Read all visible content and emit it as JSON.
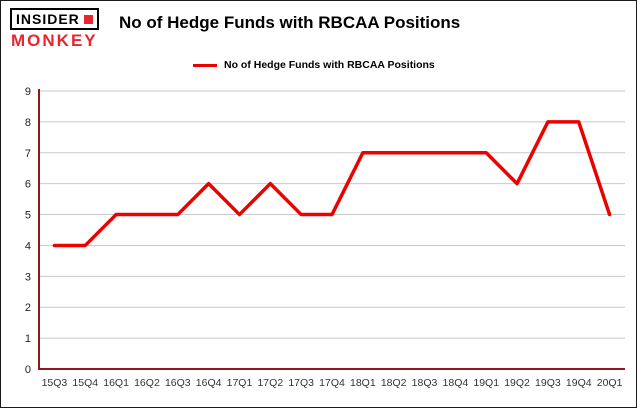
{
  "logo": {
    "line1": "INSIDER",
    "line2": "MONKEY"
  },
  "title": "No of Hedge Funds with RBCAA Positions",
  "legend": {
    "label": "No of Hedge Funds with RBCAA Positions",
    "color": "#ee0000"
  },
  "chart_data": {
    "type": "line",
    "title": "No of Hedge Funds with RBCAA Positions",
    "series_name": "No of Hedge Funds with RBCAA Positions",
    "categories": [
      "15Q3",
      "15Q4",
      "16Q1",
      "16Q2",
      "16Q3",
      "16Q4",
      "17Q1",
      "17Q2",
      "17Q3",
      "17Q4",
      "18Q1",
      "18Q2",
      "18Q3",
      "18Q4",
      "19Q1",
      "19Q2",
      "19Q3",
      "19Q4",
      "20Q1"
    ],
    "values": [
      4,
      4,
      5,
      5,
      5,
      6,
      5,
      6,
      5,
      5,
      7,
      7,
      7,
      7,
      7,
      6,
      8,
      8,
      5
    ],
    "ylim": [
      0,
      9
    ],
    "yticks": [
      0,
      1,
      2,
      3,
      4,
      5,
      6,
      7,
      8,
      9
    ],
    "grid": true,
    "legend_position": "top",
    "line_color": "#ee0000",
    "axis_color": "#8b1a1a",
    "grid_color": "#c9c9c9"
  }
}
